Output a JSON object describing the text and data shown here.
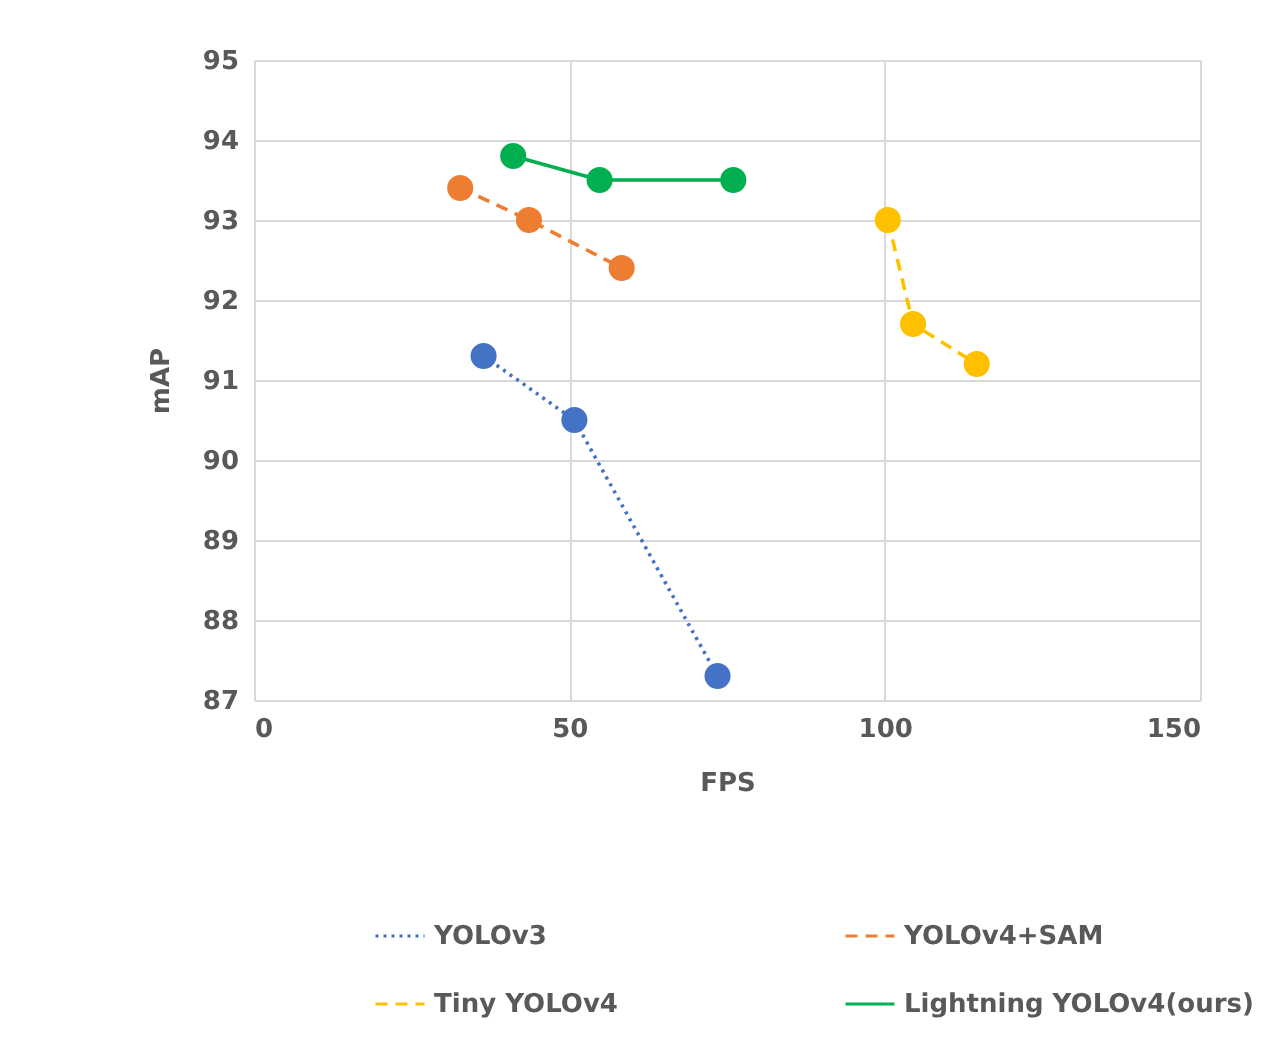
{
  "chart_data": {
    "type": "line",
    "xlabel": "FPS",
    "ylabel": "mAP",
    "xlim": [
      0,
      150
    ],
    "xticks": [
      0,
      50,
      100,
      150
    ],
    "ylim": [
      87,
      95
    ],
    "yticks": [
      87,
      88,
      89,
      90,
      91,
      92,
      93,
      94,
      95
    ],
    "grid": true,
    "legend": "bottom",
    "marker": "circle",
    "series": [
      {
        "name": "YOLOv3",
        "color": "#4472c4",
        "line_style": "dotted",
        "x": [
          36.4,
          50.8,
          73.5
        ],
        "values": [
          91.3,
          90.5,
          87.3
        ]
      },
      {
        "name": "YOLOv4+SAM",
        "color": "#ed7d31",
        "line_style": "dashed",
        "x": [
          32.7,
          43.6,
          58.3
        ],
        "values": [
          93.4,
          93.0,
          92.4
        ]
      },
      {
        "name": "Tiny YOLOv4",
        "color": "#ffc000",
        "line_style": "dashed",
        "x": [
          100.5,
          104.5,
          114.6
        ],
        "values": [
          93.0,
          91.7,
          91.2
        ]
      },
      {
        "name": "Lightning YOLOv4(ours)",
        "color": "#00b050",
        "line_style": "solid",
        "x": [
          41.1,
          54.8,
          76.0
        ],
        "values": [
          93.8,
          93.5,
          93.5
        ]
      }
    ]
  }
}
